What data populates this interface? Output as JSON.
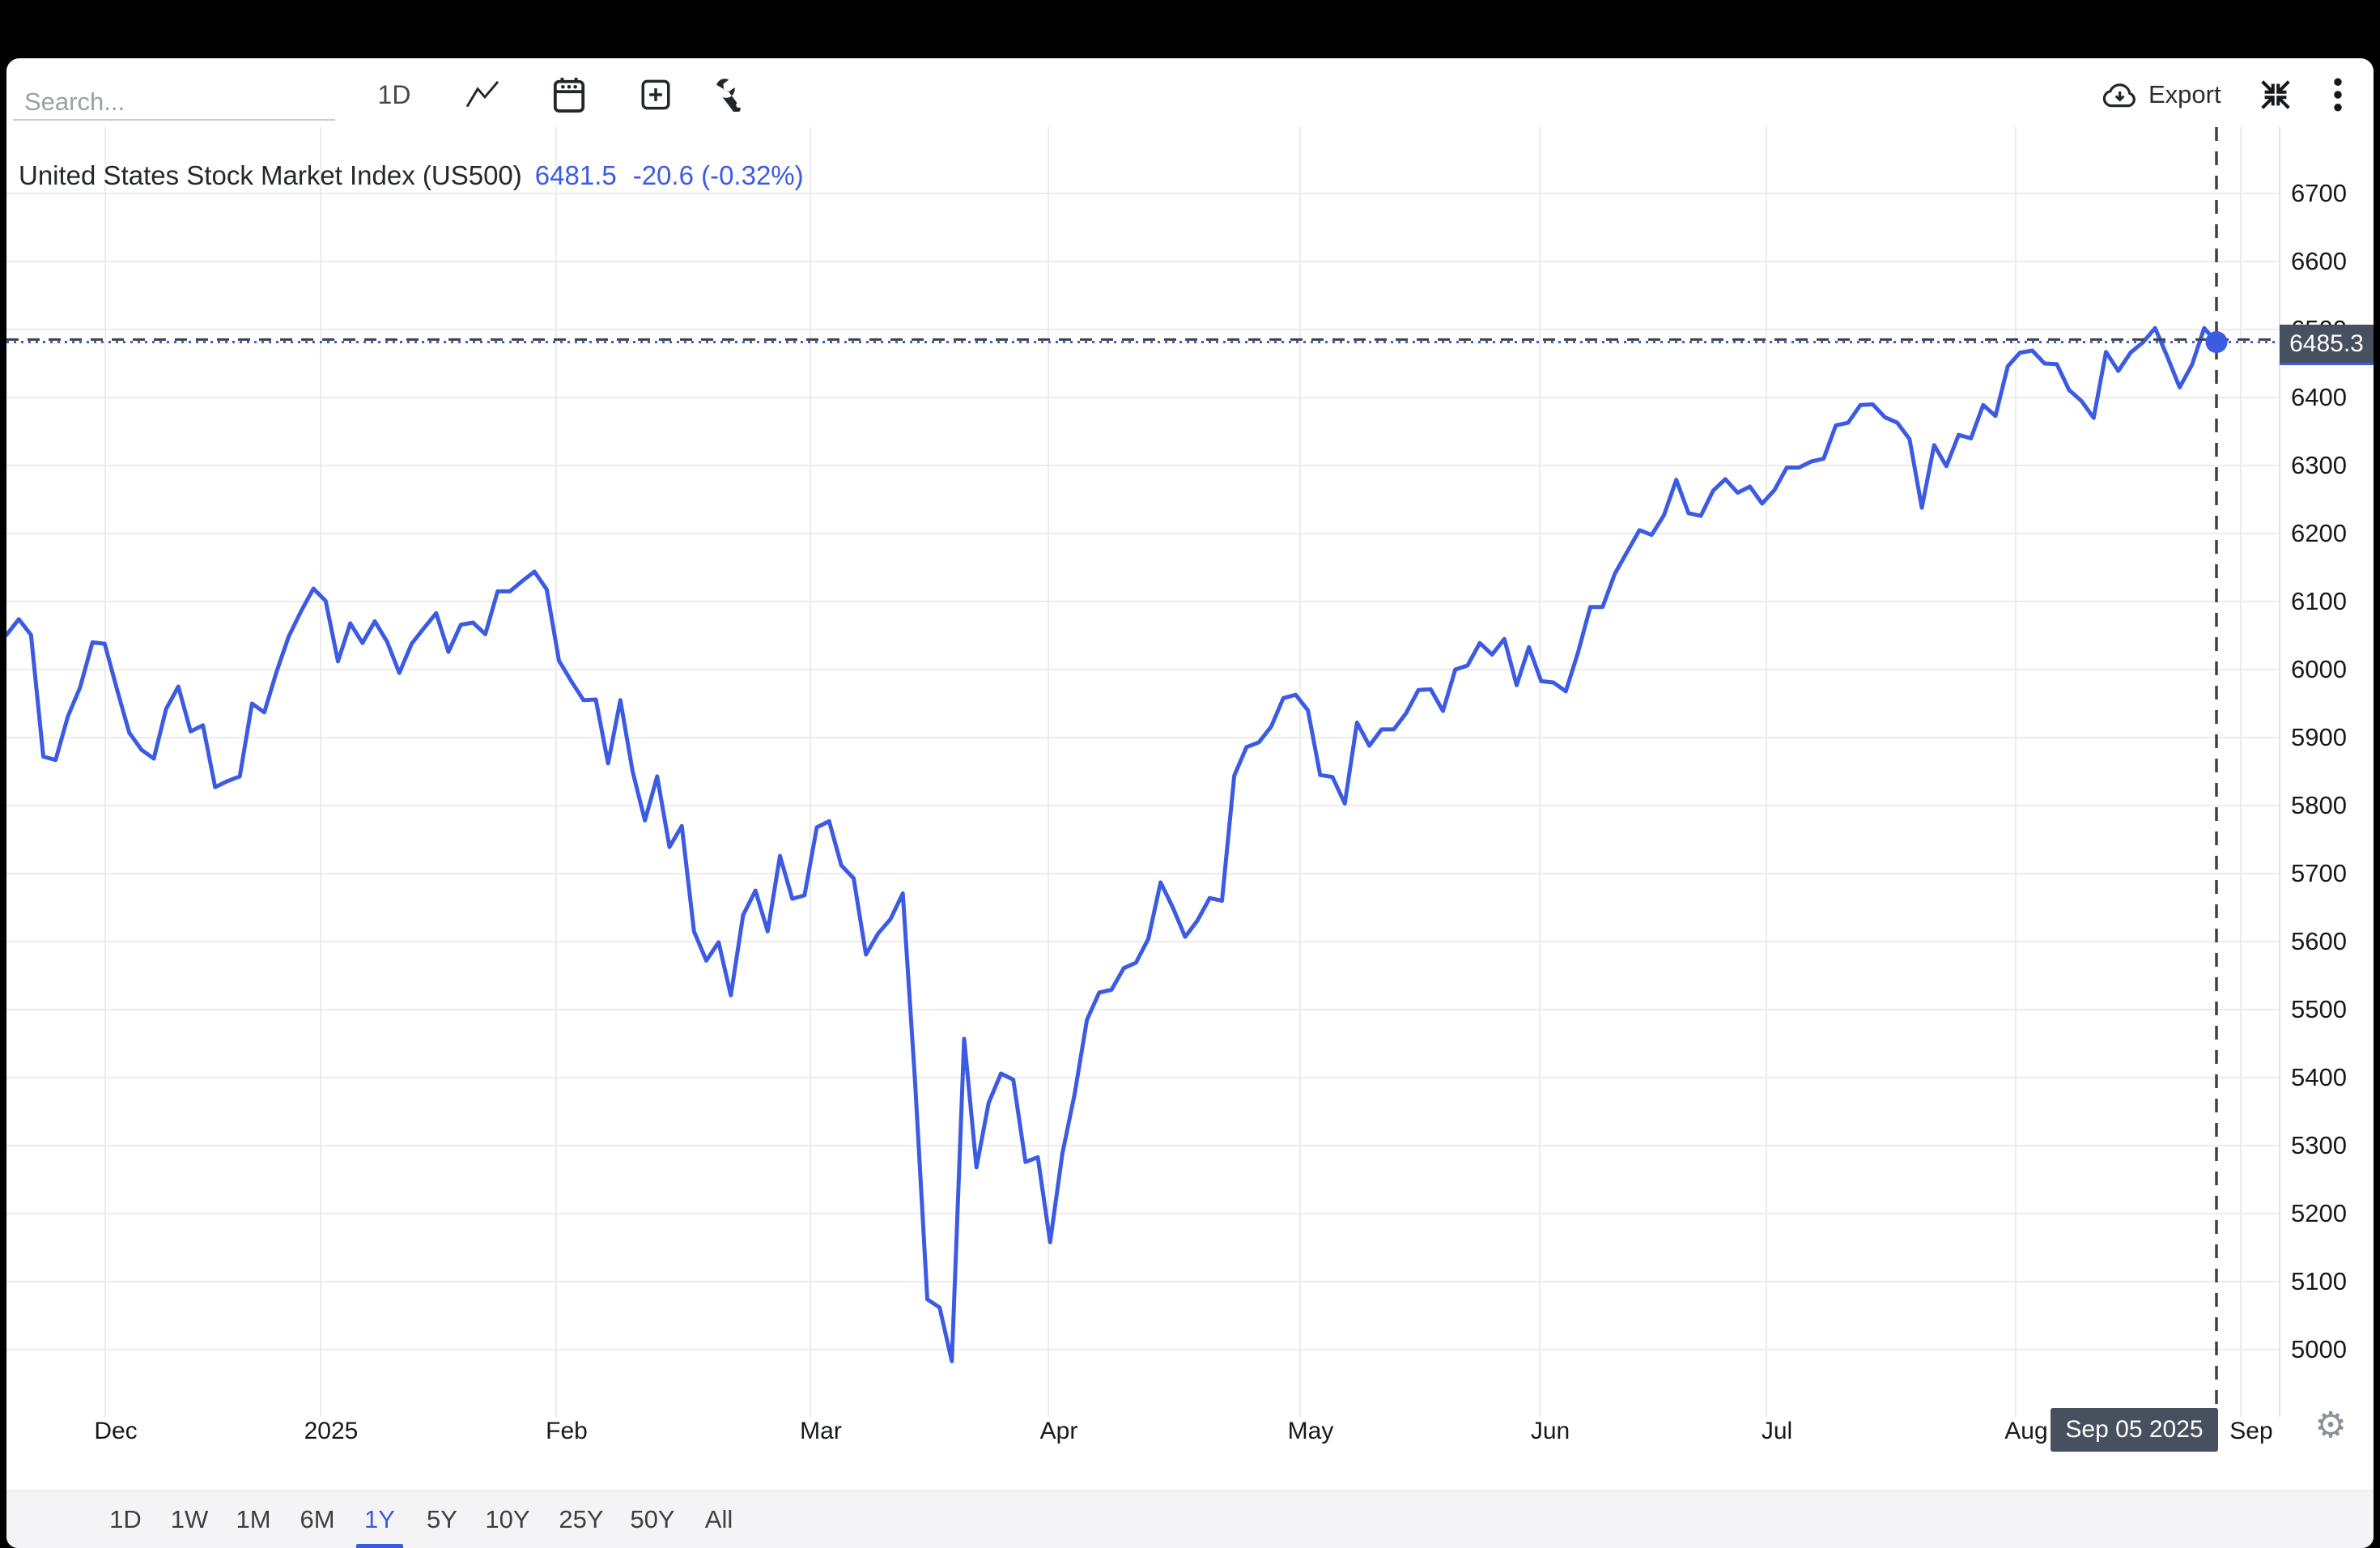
{
  "toolbar": {
    "search_placeholder": "Search...",
    "interval_label": "1D",
    "export_label": "Export",
    "icons": [
      "line-chart-icon",
      "calendar-icon",
      "plus-box-icon",
      "wrench-icon",
      "cloud-download-icon",
      "collapse-icon",
      "kebab-menu-icon",
      "gear-icon"
    ]
  },
  "symbol_header": {
    "name": "United States Stock Market Index (US500)",
    "price": "6481.5",
    "change": "-20.6 (-0.32%)"
  },
  "y_axis": {
    "labels": [
      "6700",
      "6600",
      "6500",
      "6400",
      "6300",
      "6200",
      "6100",
      "6000",
      "5900",
      "5800",
      "5700",
      "5600",
      "5500",
      "5400",
      "5300",
      "5200",
      "5100",
      "5000"
    ],
    "price_badge": "6485.3"
  },
  "x_axis": {
    "labels": [
      "Dec",
      "2025",
      "Feb",
      "Mar",
      "Apr",
      "May",
      "Jun",
      "Jul",
      "Aug",
      "Sep"
    ],
    "date_badge": "Sep 05 2025"
  },
  "range_toolbar": {
    "buttons": [
      "1D",
      "1W",
      "1M",
      "6M",
      "1Y",
      "5Y",
      "10Y",
      "25Y",
      "50Y",
      "All"
    ],
    "active": "1Y"
  },
  "colors": {
    "accent_blue": "#3C5BE3",
    "badge_bg": "#47505F",
    "grid": "#ECECEE",
    "crosshair": "#3C424B",
    "panel": "#FFFFFF",
    "frame": "#000000",
    "muted_text": "#9AA0A6"
  },
  "chart_data": {
    "type": "line",
    "title": "United States Stock Market Index (US500)",
    "xlabel": "",
    "ylabel": "",
    "ylim": [
      4950,
      6750
    ],
    "x_range": [
      "2024-12-13",
      "2025-09-05"
    ],
    "grid": true,
    "legend_position": "none",
    "last_price": 6481.5,
    "crosshair": {
      "date": "Sep 05 2025",
      "value": 6485.3
    },
    "series": [
      {
        "name": "US500",
        "points": [
          [
            "2024-12-13",
            6051
          ],
          [
            "2024-12-16",
            6074
          ],
          [
            "2024-12-17",
            6051
          ],
          [
            "2024-12-18",
            5872
          ],
          [
            "2024-12-19",
            5867
          ],
          [
            "2024-12-20",
            5931
          ],
          [
            "2024-12-23",
            5974
          ],
          [
            "2024-12-24",
            6040
          ],
          [
            "2024-12-26",
            6038
          ],
          [
            "2024-12-27",
            5971
          ],
          [
            "2024-12-30",
            5907
          ],
          [
            "2024-12-31",
            5882
          ],
          [
            "2025-01-02",
            5869
          ],
          [
            "2025-01-03",
            5942
          ],
          [
            "2025-01-06",
            5975
          ],
          [
            "2025-01-07",
            5909
          ],
          [
            "2025-01-08",
            5918
          ],
          [
            "2025-01-10",
            5827
          ],
          [
            "2025-01-13",
            5836
          ],
          [
            "2025-01-14",
            5843
          ],
          [
            "2025-01-15",
            5950
          ],
          [
            "2025-01-16",
            5937
          ],
          [
            "2025-01-17",
            5997
          ],
          [
            "2025-01-21",
            6049
          ],
          [
            "2025-01-22",
            6086
          ],
          [
            "2025-01-23",
            6119
          ],
          [
            "2025-01-24",
            6101
          ],
          [
            "2025-01-27",
            6012
          ],
          [
            "2025-01-28",
            6068
          ],
          [
            "2025-01-29",
            6039
          ],
          [
            "2025-01-30",
            6071
          ],
          [
            "2025-01-31",
            6041
          ],
          [
            "2025-02-03",
            5995
          ],
          [
            "2025-02-04",
            6038
          ],
          [
            "2025-02-05",
            6061
          ],
          [
            "2025-02-06",
            6083
          ],
          [
            "2025-02-07",
            6026
          ],
          [
            "2025-02-10",
            6066
          ],
          [
            "2025-02-11",
            6069
          ],
          [
            "2025-02-12",
            6052
          ],
          [
            "2025-02-13",
            6115
          ],
          [
            "2025-02-14",
            6115
          ],
          [
            "2025-02-18",
            6130
          ],
          [
            "2025-02-19",
            6144
          ],
          [
            "2025-02-20",
            6118
          ],
          [
            "2025-02-21",
            6013
          ],
          [
            "2025-02-24",
            5983
          ],
          [
            "2025-02-25",
            5955
          ],
          [
            "2025-02-26",
            5956
          ],
          [
            "2025-02-27",
            5862
          ],
          [
            "2025-02-28",
            5955
          ],
          [
            "2025-03-03",
            5850
          ],
          [
            "2025-03-04",
            5778
          ],
          [
            "2025-03-05",
            5843
          ],
          [
            "2025-03-06",
            5739
          ],
          [
            "2025-03-07",
            5770
          ],
          [
            "2025-03-10",
            5615
          ],
          [
            "2025-03-11",
            5572
          ],
          [
            "2025-03-12",
            5599
          ],
          [
            "2025-03-13",
            5521
          ],
          [
            "2025-03-14",
            5639
          ],
          [
            "2025-03-17",
            5675
          ],
          [
            "2025-03-18",
            5615
          ],
          [
            "2025-03-19",
            5726
          ],
          [
            "2025-03-20",
            5663
          ],
          [
            "2025-03-21",
            5668
          ],
          [
            "2025-03-24",
            5768
          ],
          [
            "2025-03-25",
            5777
          ],
          [
            "2025-03-26",
            5712
          ],
          [
            "2025-03-27",
            5693
          ],
          [
            "2025-03-28",
            5581
          ],
          [
            "2025-03-31",
            5612
          ],
          [
            "2025-04-01",
            5633
          ],
          [
            "2025-04-02",
            5671
          ],
          [
            "2025-04-03",
            5396
          ],
          [
            "2025-04-04",
            5074
          ],
          [
            "2025-04-07",
            5062
          ],
          [
            "2025-04-08",
            4983
          ],
          [
            "2025-04-09",
            5457
          ],
          [
            "2025-04-10",
            5268
          ],
          [
            "2025-04-11",
            5363
          ],
          [
            "2025-04-14",
            5406
          ],
          [
            "2025-04-15",
            5397
          ],
          [
            "2025-04-16",
            5276
          ],
          [
            "2025-04-17",
            5283
          ],
          [
            "2025-04-21",
            5158
          ],
          [
            "2025-04-22",
            5288
          ],
          [
            "2025-04-23",
            5376
          ],
          [
            "2025-04-24",
            5485
          ],
          [
            "2025-04-25",
            5525
          ],
          [
            "2025-04-28",
            5529
          ],
          [
            "2025-04-29",
            5561
          ],
          [
            "2025-04-30",
            5569
          ],
          [
            "2025-05-01",
            5604
          ],
          [
            "2025-05-02",
            5687
          ],
          [
            "2025-05-05",
            5650
          ],
          [
            "2025-05-06",
            5607
          ],
          [
            "2025-05-07",
            5631
          ],
          [
            "2025-05-08",
            5664
          ],
          [
            "2025-05-09",
            5660
          ],
          [
            "2025-05-12",
            5844
          ],
          [
            "2025-05-13",
            5886
          ],
          [
            "2025-05-14",
            5893
          ],
          [
            "2025-05-15",
            5916
          ],
          [
            "2025-05-16",
            5958
          ],
          [
            "2025-05-19",
            5963
          ],
          [
            "2025-05-20",
            5940
          ],
          [
            "2025-05-21",
            5845
          ],
          [
            "2025-05-22",
            5842
          ],
          [
            "2025-05-23",
            5803
          ],
          [
            "2025-05-27",
            5922
          ],
          [
            "2025-05-28",
            5888
          ],
          [
            "2025-05-29",
            5912
          ],
          [
            "2025-05-30",
            5912
          ],
          [
            "2025-06-02",
            5936
          ],
          [
            "2025-06-03",
            5970
          ],
          [
            "2025-06-04",
            5971
          ],
          [
            "2025-06-05",
            5939
          ],
          [
            "2025-06-06",
            6000
          ],
          [
            "2025-06-09",
            6006
          ],
          [
            "2025-06-10",
            6039
          ],
          [
            "2025-06-11",
            6022
          ],
          [
            "2025-06-12",
            6045
          ],
          [
            "2025-06-13",
            5977
          ],
          [
            "2025-06-16",
            6033
          ],
          [
            "2025-06-17",
            5983
          ],
          [
            "2025-06-18",
            5981
          ],
          [
            "2025-06-20",
            5968
          ],
          [
            "2025-06-23",
            6025
          ],
          [
            "2025-06-24",
            6092
          ],
          [
            "2025-06-25",
            6092
          ],
          [
            "2025-06-26",
            6141
          ],
          [
            "2025-06-27",
            6173
          ],
          [
            "2025-06-30",
            6205
          ],
          [
            "2025-07-01",
            6198
          ],
          [
            "2025-07-02",
            6227
          ],
          [
            "2025-07-03",
            6279
          ],
          [
            "2025-07-07",
            6230
          ],
          [
            "2025-07-08",
            6226
          ],
          [
            "2025-07-09",
            6263
          ],
          [
            "2025-07-10",
            6280
          ],
          [
            "2025-07-11",
            6260
          ],
          [
            "2025-07-14",
            6269
          ],
          [
            "2025-07-15",
            6244
          ],
          [
            "2025-07-16",
            6264
          ],
          [
            "2025-07-17",
            6297
          ],
          [
            "2025-07-18",
            6297
          ],
          [
            "2025-07-21",
            6306
          ],
          [
            "2025-07-22",
            6310
          ],
          [
            "2025-07-23",
            6359
          ],
          [
            "2025-07-24",
            6363
          ],
          [
            "2025-07-25",
            6389
          ],
          [
            "2025-07-28",
            6390
          ],
          [
            "2025-07-29",
            6371
          ],
          [
            "2025-07-30",
            6363
          ],
          [
            "2025-07-31",
            6339
          ],
          [
            "2025-08-01",
            6238
          ],
          [
            "2025-08-04",
            6330
          ],
          [
            "2025-08-05",
            6299
          ],
          [
            "2025-08-06",
            6345
          ],
          [
            "2025-08-07",
            6340
          ],
          [
            "2025-08-08",
            6389
          ],
          [
            "2025-08-11",
            6373
          ],
          [
            "2025-08-12",
            6446
          ],
          [
            "2025-08-13",
            6466
          ],
          [
            "2025-08-14",
            6469
          ],
          [
            "2025-08-15",
            6450
          ],
          [
            "2025-08-18",
            6449
          ],
          [
            "2025-08-19",
            6411
          ],
          [
            "2025-08-20",
            6395
          ],
          [
            "2025-08-21",
            6370
          ],
          [
            "2025-08-22",
            6467
          ],
          [
            "2025-08-25",
            6439
          ],
          [
            "2025-08-26",
            6466
          ],
          [
            "2025-08-27",
            6481
          ],
          [
            "2025-08-28",
            6502
          ],
          [
            "2025-08-29",
            6460
          ],
          [
            "2025-09-02",
            6415
          ],
          [
            "2025-09-03",
            6448
          ],
          [
            "2025-09-04",
            6502
          ],
          [
            "2025-09-05",
            6481.5
          ]
        ]
      }
    ]
  }
}
